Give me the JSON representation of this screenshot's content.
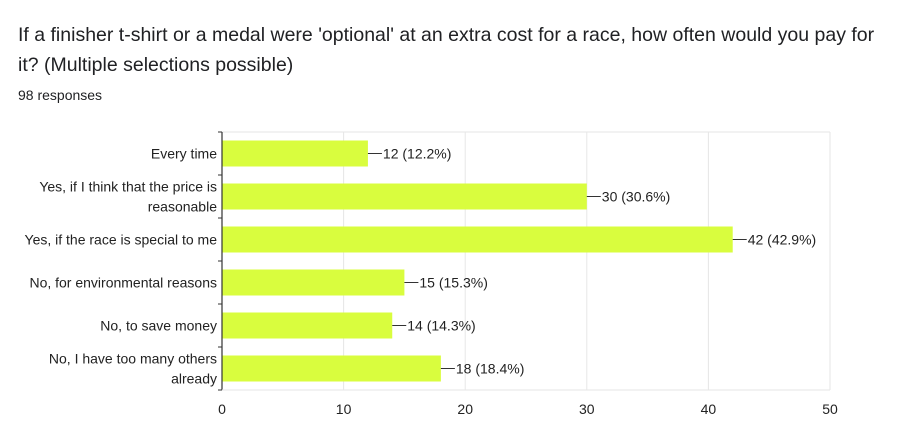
{
  "question": {
    "title": "If a finisher t-shirt or a medal were 'optional' at an extra cost for a race, how often would you pay for it? (Multiple selections possible)",
    "responses": "98 responses"
  },
  "colors": {
    "bar": "#d9fd3e",
    "axis": "#333333",
    "grid": "#e6e6e6",
    "text": "#222222"
  },
  "chart_data": {
    "type": "bar",
    "orientation": "horizontal",
    "categories": [
      [
        "Every time"
      ],
      [
        "Yes, if I think that the price is",
        "reasonable"
      ],
      [
        "Yes, if the race is special to me"
      ],
      [
        "No, for environmental reasons"
      ],
      [
        "No, to save money"
      ],
      [
        "No, I have too many others",
        "already"
      ]
    ],
    "values": [
      12,
      30,
      42,
      15,
      14,
      18
    ],
    "data_labels": [
      "12 (12.2%)",
      "30 (30.6%)",
      "42 (42.9%)",
      "15 (15.3%)",
      "14 (14.3%)",
      "18 (18.4%)"
    ],
    "xlim": [
      0,
      50
    ],
    "xticks": [
      0,
      10,
      20,
      30,
      40,
      50
    ],
    "grid": true
  }
}
